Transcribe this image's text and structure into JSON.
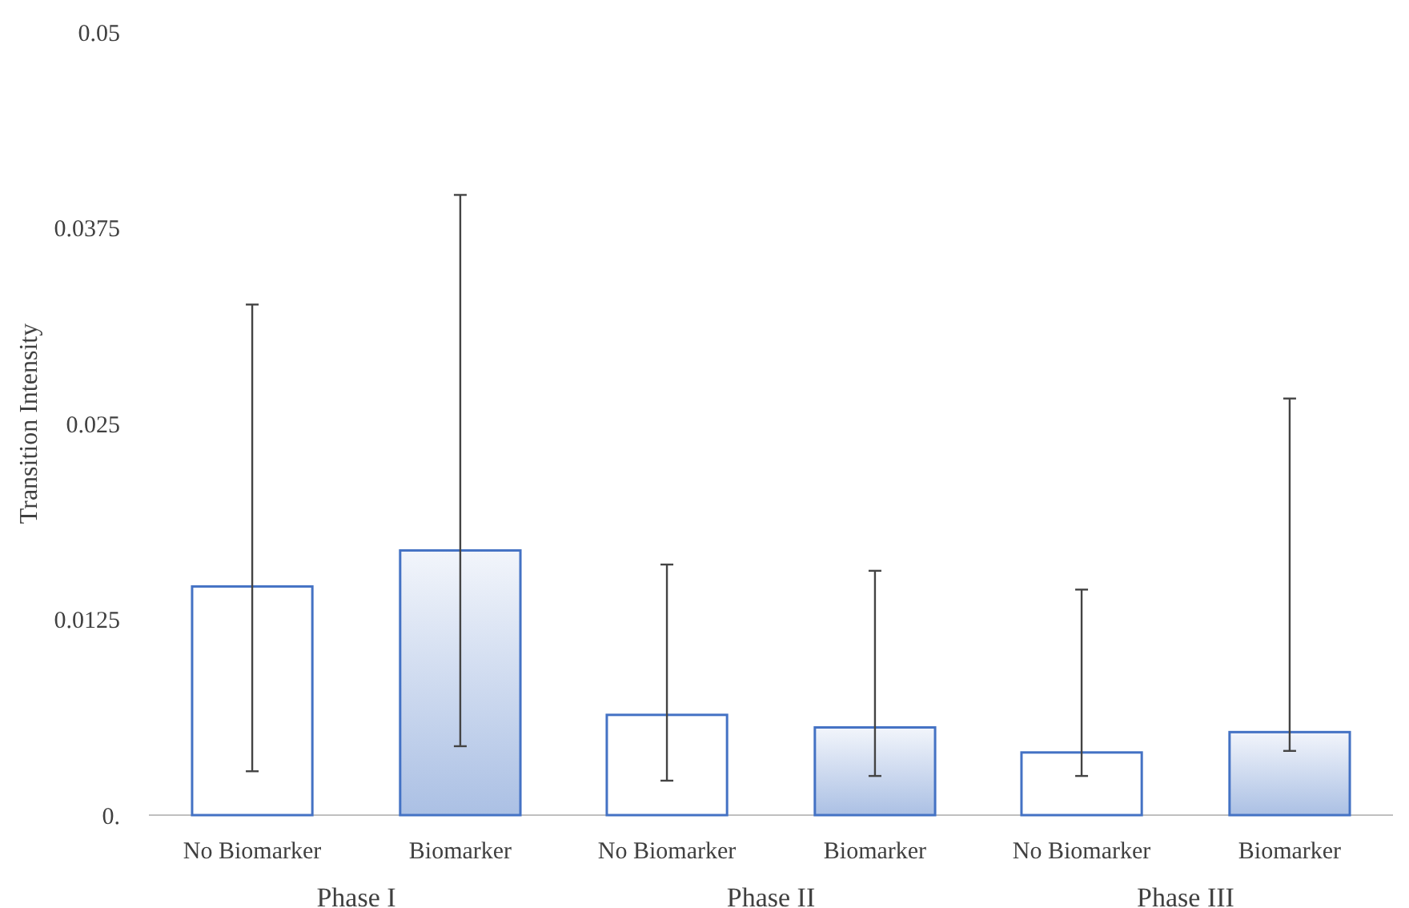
{
  "chart_data": {
    "type": "bar",
    "ylabel": "Transition Intensity",
    "categories": [
      "Phase I",
      "Phase II",
      "Phase III"
    ],
    "series": [
      {
        "name": "No Biomarker",
        "color": "#ffffff",
        "values": [
          0.0146,
          0.0064,
          0.004
        ],
        "errors": [
          [
            0.0028,
            0.0326
          ],
          [
            0.0022,
            0.016
          ],
          [
            0.0025,
            0.0144
          ]
        ]
      },
      {
        "name": "Biomarker",
        "color": "#4472c4",
        "values": [
          0.0169,
          0.0056,
          0.0053
        ],
        "errors": [
          [
            0.0044,
            0.0396
          ],
          [
            0.0025,
            0.0156
          ],
          [
            0.0041,
            0.0266
          ]
        ]
      }
    ],
    "ylim": [
      0,
      0.05
    ],
    "yticks": [
      {
        "value": 0,
        "label": "0."
      },
      0.0125,
      0.025,
      0.0375,
      0.05
    ],
    "legend": false,
    "grid": false
  }
}
